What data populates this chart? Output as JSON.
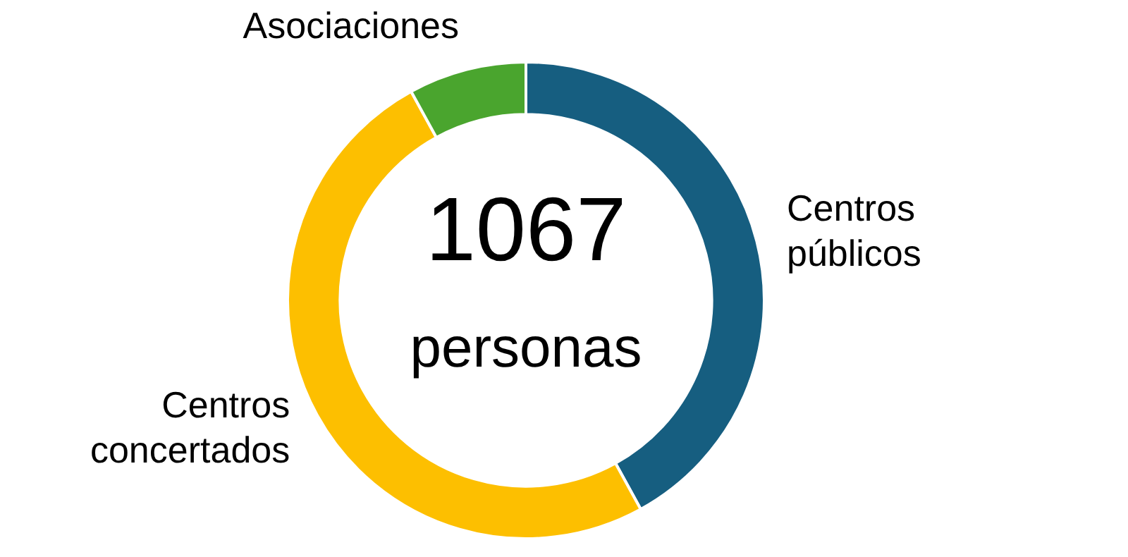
{
  "chart_data": {
    "type": "donut",
    "categories": [
      "Centros públicos",
      "Centros concertados",
      "Asociaciones"
    ],
    "values": [
      42,
      50,
      8
    ],
    "colors": [
      "#165e80",
      "#fdbf00",
      "#4aa52e"
    ],
    "annotations": [
      "1067",
      "personas"
    ],
    "legend": false
  }
}
